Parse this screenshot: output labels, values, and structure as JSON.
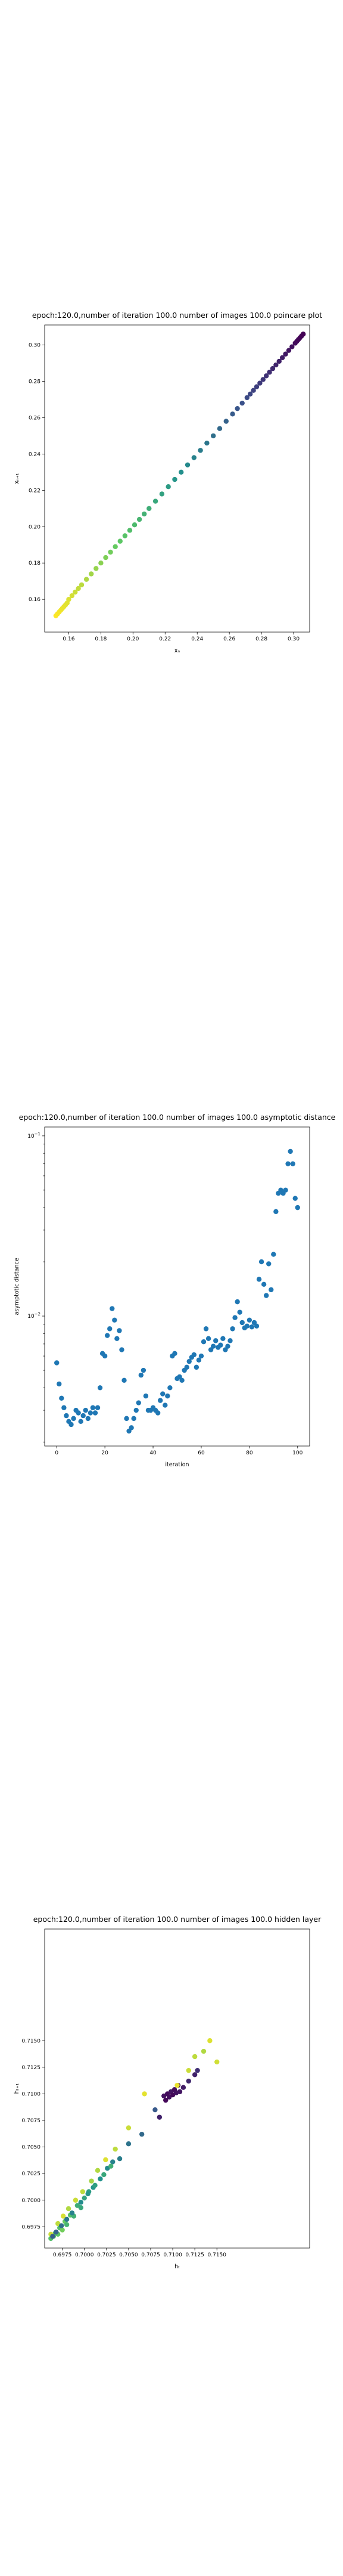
{
  "chart_data": [
    {
      "type": "scatter",
      "title": "epoch:120.0,number of iteration 100.0 number of images 100.0 poincare plot",
      "xlabel": "xₙ",
      "ylabel": "xₙ₊₁",
      "xlim": [
        0.145,
        0.31
      ],
      "ylim": [
        0.142,
        0.311
      ],
      "x_ticks": [
        "0.16",
        "0.18",
        "0.20",
        "0.22",
        "0.24",
        "0.26",
        "0.28",
        "0.30"
      ],
      "y_ticks": [
        "0.16",
        "0.18",
        "0.20",
        "0.22",
        "0.24",
        "0.26",
        "0.28",
        "0.30"
      ],
      "color_map": "viridis",
      "color_direction": "high-x-dark",
      "points": [
        [
          0.152,
          0.151
        ],
        [
          0.153,
          0.152
        ],
        [
          0.154,
          0.153
        ],
        [
          0.155,
          0.154
        ],
        [
          0.156,
          0.155
        ],
        [
          0.157,
          0.156
        ],
        [
          0.158,
          0.157
        ],
        [
          0.159,
          0.158
        ],
        [
          0.16,
          0.16
        ],
        [
          0.162,
          0.162
        ],
        [
          0.164,
          0.164
        ],
        [
          0.166,
          0.166
        ],
        [
          0.168,
          0.168
        ],
        [
          0.171,
          0.171
        ],
        [
          0.174,
          0.174
        ],
        [
          0.177,
          0.177
        ],
        [
          0.18,
          0.18
        ],
        [
          0.183,
          0.183
        ],
        [
          0.186,
          0.186
        ],
        [
          0.189,
          0.189
        ],
        [
          0.192,
          0.192
        ],
        [
          0.195,
          0.195
        ],
        [
          0.198,
          0.198
        ],
        [
          0.201,
          0.201
        ],
        [
          0.204,
          0.204
        ],
        [
          0.207,
          0.207
        ],
        [
          0.21,
          0.21
        ],
        [
          0.214,
          0.214
        ],
        [
          0.218,
          0.218
        ],
        [
          0.222,
          0.222
        ],
        [
          0.226,
          0.226
        ],
        [
          0.23,
          0.23
        ],
        [
          0.234,
          0.234
        ],
        [
          0.238,
          0.238
        ],
        [
          0.242,
          0.242
        ],
        [
          0.246,
          0.246
        ],
        [
          0.25,
          0.25
        ],
        [
          0.254,
          0.254
        ],
        [
          0.258,
          0.258
        ],
        [
          0.262,
          0.262
        ],
        [
          0.265,
          0.265
        ],
        [
          0.268,
          0.268
        ],
        [
          0.271,
          0.271
        ],
        [
          0.273,
          0.273
        ],
        [
          0.275,
          0.275
        ],
        [
          0.277,
          0.277
        ],
        [
          0.279,
          0.279
        ],
        [
          0.281,
          0.281
        ],
        [
          0.283,
          0.283
        ],
        [
          0.285,
          0.285
        ],
        [
          0.287,
          0.287
        ],
        [
          0.289,
          0.289
        ],
        [
          0.291,
          0.291
        ],
        [
          0.293,
          0.293
        ],
        [
          0.295,
          0.295
        ],
        [
          0.297,
          0.297
        ],
        [
          0.299,
          0.299
        ],
        [
          0.301,
          0.301
        ],
        [
          0.302,
          0.302
        ],
        [
          0.303,
          0.303
        ],
        [
          0.304,
          0.304
        ],
        [
          0.305,
          0.305
        ],
        [
          0.306,
          0.306
        ]
      ]
    },
    {
      "type": "scatter",
      "title": "epoch:120.0,number of iteration 100.0  number of images 100.0 asymptotic distance",
      "xlabel": "iteration",
      "ylabel": "asymptotic distance",
      "xlim": [
        -5,
        105
      ],
      "ylim_log": [
        0.0019,
        0.112
      ],
      "log_scale_y": true,
      "x_ticks": [
        "0",
        "20",
        "40",
        "60",
        "80",
        "100"
      ],
      "y_ticks": [
        {
          "base": "10",
          "exp": "−1",
          "value": 0.1
        },
        {
          "base": "10",
          "exp": "−2",
          "value": 0.01
        }
      ],
      "color": "#1f77b4",
      "x": [
        0,
        1,
        2,
        3,
        4,
        5,
        6,
        7,
        8,
        9,
        10,
        11,
        12,
        13,
        14,
        15,
        16,
        17,
        18,
        19,
        20,
        21,
        22,
        23,
        24,
        25,
        26,
        27,
        28,
        29,
        30,
        31,
        32,
        33,
        34,
        35,
        36,
        37,
        38,
        39,
        40,
        41,
        42,
        43,
        44,
        45,
        46,
        47,
        48,
        49,
        50,
        51,
        52,
        53,
        54,
        55,
        56,
        57,
        58,
        59,
        60,
        61,
        62,
        63,
        64,
        65,
        66,
        67,
        68,
        69,
        70,
        71,
        72,
        73,
        74,
        75,
        76,
        77,
        78,
        79,
        80,
        81,
        82,
        83,
        84,
        85,
        86,
        87,
        88,
        89,
        90,
        91,
        92,
        93,
        94,
        95,
        96,
        97,
        98,
        99,
        100
      ],
      "y": [
        0.0055,
        0.0042,
        0.0035,
        0.0031,
        0.0028,
        0.0026,
        0.0025,
        0.0027,
        0.003,
        0.0029,
        0.0026,
        0.0028,
        0.003,
        0.0027,
        0.0029,
        0.0031,
        0.0029,
        0.0031,
        0.004,
        0.0062,
        0.006,
        0.0078,
        0.0085,
        0.011,
        0.0095,
        0.0075,
        0.0083,
        0.0065,
        0.0044,
        0.0027,
        0.0023,
        0.0024,
        0.0027,
        0.003,
        0.0033,
        0.0047,
        0.005,
        0.0036,
        0.003,
        0.003,
        0.0031,
        0.003,
        0.0029,
        0.0034,
        0.0037,
        0.0032,
        0.0036,
        0.004,
        0.006,
        0.0062,
        0.0045,
        0.0046,
        0.0044,
        0.005,
        0.0052,
        0.0056,
        0.0059,
        0.0061,
        0.0052,
        0.0057,
        0.006,
        0.0072,
        0.0085,
        0.0075,
        0.0065,
        0.0068,
        0.0073,
        0.0067,
        0.0069,
        0.0075,
        0.0065,
        0.0068,
        0.0073,
        0.0085,
        0.0098,
        0.012,
        0.0105,
        0.0092,
        0.0086,
        0.0088,
        0.0095,
        0.0087,
        0.0092,
        0.0088,
        0.016,
        0.02,
        0.015,
        0.013,
        0.0195,
        0.014,
        0.022,
        0.038,
        0.048,
        0.05,
        0.048,
        0.05,
        0.07,
        0.082,
        0.07,
        0.045,
        0.04
      ]
    },
    {
      "type": "scatter",
      "title": "epoch:120.0,number of iteration 100.0  number of images 100.0 hidden layer",
      "xlabel": "hₜ",
      "ylabel": "hₜ₊₁",
      "xlim": [
        0.6955,
        0.7255
      ],
      "ylim": [
        0.6955,
        0.7255
      ],
      "x_ticks": [
        "0.6975",
        "0.7000",
        "0.7025",
        "0.7050",
        "0.7075",
        "0.7100",
        "0.7125",
        "0.7150"
      ],
      "y_ticks": [
        "0.6975",
        "0.7000",
        "0.7025",
        "0.7050",
        "0.7075",
        "0.7100",
        "0.7125",
        "0.7150"
      ],
      "color_map": "viridis",
      "points": [
        [
          0.6962,
          0.6964,
          0.7
        ],
        [
          0.6965,
          0.6966,
          0.72
        ],
        [
          0.6967,
          0.6969,
          0.68
        ],
        [
          0.697,
          0.6968,
          0.74
        ],
        [
          0.6972,
          0.6974,
          0.7
        ],
        [
          0.6975,
          0.6972,
          0.78
        ],
        [
          0.6978,
          0.698,
          0.76
        ],
        [
          0.698,
          0.6977,
          0.66
        ],
        [
          0.6984,
          0.6986,
          0.72
        ],
        [
          0.6988,
          0.6985,
          0.64
        ],
        [
          0.6992,
          0.6995,
          0.62
        ],
        [
          0.6996,
          0.6993,
          0.6
        ],
        [
          0.7,
          0.7002,
          0.58
        ],
        [
          0.7005,
          0.7008,
          0.55
        ],
        [
          0.701,
          0.7012,
          0.52
        ],
        [
          0.7018,
          0.702,
          0.5
        ],
        [
          0.7026,
          0.703,
          0.47
        ],
        [
          0.7032,
          0.7036,
          0.44
        ],
        [
          0.704,
          0.7039,
          0.42
        ],
        [
          0.705,
          0.7053,
          0.38
        ],
        [
          0.7065,
          0.7062,
          0.34
        ],
        [
          0.708,
          0.7085,
          0.28
        ],
        [
          0.7085,
          0.7078,
          0.1
        ],
        [
          0.709,
          0.7098,
          0.05
        ],
        [
          0.7092,
          0.7094,
          0.02
        ],
        [
          0.7094,
          0.71,
          0.03
        ],
        [
          0.7096,
          0.7097,
          0.04
        ],
        [
          0.7098,
          0.7102,
          0.06
        ],
        [
          0.71,
          0.7099,
          0.02
        ],
        [
          0.7102,
          0.7104,
          0.03
        ],
        [
          0.7104,
          0.7101,
          0.05
        ],
        [
          0.7106,
          0.7108,
          0.04
        ],
        [
          0.7108,
          0.7102,
          0.06
        ],
        [
          0.7112,
          0.7106,
          0.08
        ],
        [
          0.7118,
          0.7112,
          0.12
        ],
        [
          0.7125,
          0.7118,
          0.1
        ],
        [
          0.7128,
          0.7122,
          0.14
        ],
        [
          0.6962,
          0.6968,
          0.92
        ],
        [
          0.697,
          0.6978,
          0.9
        ],
        [
          0.6976,
          0.6985,
          0.94
        ],
        [
          0.6982,
          0.6992,
          0.88
        ],
        [
          0.699,
          0.7,
          0.92
        ],
        [
          0.6998,
          0.7008,
          0.9
        ],
        [
          0.7008,
          0.7018,
          0.86
        ],
        [
          0.7015,
          0.7028,
          0.88
        ],
        [
          0.7024,
          0.7038,
          0.95
        ],
        [
          0.7035,
          0.7048,
          0.9
        ],
        [
          0.705,
          0.7068,
          0.92
        ],
        [
          0.7068,
          0.71,
          0.96
        ],
        [
          0.7105,
          0.7108,
          0.97
        ],
        [
          0.7118,
          0.7122,
          0.92
        ],
        [
          0.7125,
          0.7135,
          0.9
        ],
        [
          0.7135,
          0.714,
          0.88
        ],
        [
          0.7142,
          0.715,
          0.95
        ],
        [
          0.715,
          0.713,
          0.93
        ],
        [
          0.6964,
          0.6966,
          0.3
        ],
        [
          0.6968,
          0.697,
          0.32
        ],
        [
          0.6974,
          0.6976,
          0.36
        ],
        [
          0.698,
          0.6982,
          0.4
        ],
        [
          0.6986,
          0.6988,
          0.44
        ],
        [
          0.6996,
          0.6998,
          0.48
        ],
        [
          0.7004,
          0.7006,
          0.52
        ],
        [
          0.7012,
          0.7014,
          0.56
        ],
        [
          0.7022,
          0.7024,
          0.6
        ],
        [
          0.703,
          0.7032,
          0.64
        ]
      ]
    }
  ]
}
